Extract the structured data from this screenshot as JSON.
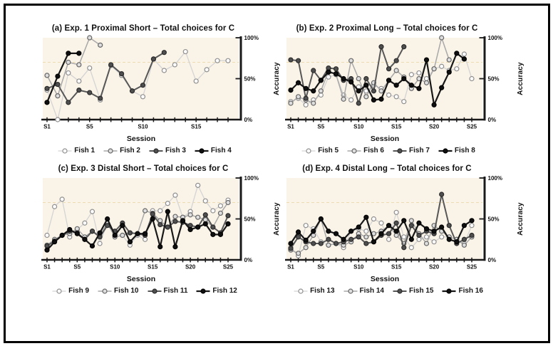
{
  "axis": {
    "color": "#1a1a1a",
    "bg": "#faf3e8",
    "ref_color": "#eddcb2",
    "ref_value": 70,
    "y_ticks": [
      {
        "label": "0%",
        "value": 0
      },
      {
        "label": "50%",
        "value": 50
      },
      {
        "label": "100%",
        "value": 100
      }
    ]
  },
  "palette": {
    "light": {
      "line": "#d4d4d4",
      "stroke": "#8f8f8f",
      "fill": "#ffffff",
      "width": 1.3
    },
    "medium": {
      "line": "#a8a8a8",
      "stroke": "#666666",
      "fill": "#dedede",
      "width": 1.5
    },
    "dark": {
      "line": "#575757",
      "stroke": "#2b2b2b",
      "fill": "#4f4f4f",
      "width": 2.0
    },
    "black": {
      "line": "#181818",
      "stroke": "#000000",
      "fill": "#101010",
      "width": 2.2
    }
  },
  "chart_data": [
    {
      "type": "line",
      "id": "a",
      "title": "(a) Exp. 1 Proximal Short – Total choices for C",
      "xlabel": "Session",
      "ylabel": "Accuracy",
      "ylim": [
        0,
        100
      ],
      "n_sessions": 18,
      "x_tick_labels": [
        {
          "label": "S1",
          "session": 1
        },
        {
          "label": "S5",
          "session": 5
        },
        {
          "label": "S10",
          "session": 10
        },
        {
          "label": "S15",
          "session": 15
        }
      ],
      "series": [
        {
          "name": "Fish 1",
          "style": "light",
          "values": [
            36,
            0,
            57,
            47,
            63,
            24,
            66,
            54,
            35,
            28,
            74,
            60,
            67,
            83,
            47,
            61,
            72,
            72
          ]
        },
        {
          "name": "Fish 2",
          "style": "medium",
          "values": [
            54,
            29,
            70,
            67,
            100,
            91
          ]
        },
        {
          "name": "Fish 3",
          "style": "dark",
          "values": [
            38,
            43,
            21,
            36,
            33,
            26,
            67,
            56,
            35,
            42,
            74,
            82
          ]
        },
        {
          "name": "Fish 4",
          "style": "black",
          "values": [
            21,
            53,
            81,
            81
          ]
        }
      ]
    },
    {
      "type": "line",
      "id": "b",
      "title": "(b) Exp. 2 Proximal Long – Total choices for C",
      "xlabel": "Session",
      "ylabel": "Accuracy",
      "ylim": [
        0,
        100
      ],
      "n_sessions": 25,
      "x_tick_labels": [
        {
          "label": "S1",
          "session": 1
        },
        {
          "label": "S5",
          "session": 5
        },
        {
          "label": "S10",
          "session": 10
        },
        {
          "label": "S15",
          "session": 15
        },
        {
          "label": "S20",
          "session": 20
        },
        {
          "label": "S25",
          "session": 25
        }
      ],
      "series": [
        {
          "name": "Fish 5",
          "style": "light",
          "values": [
            22,
            26,
            18,
            24,
            30,
            52,
            55,
            30,
            24,
            40,
            35,
            42,
            38,
            30,
            28,
            22,
            55,
            57,
            50,
            62,
            65,
            60,
            62,
            80,
            50
          ]
        },
        {
          "name": "Fish 6",
          "style": "medium",
          "values": [
            20,
            28,
            24,
            20,
            35,
            60,
            55,
            25,
            72,
            50,
            28,
            45,
            35,
            48,
            60,
            52,
            38,
            50,
            45,
            62,
            100,
            73
          ]
        },
        {
          "name": "Fish 7",
          "style": "dark",
          "values": [
            73,
            72,
            26,
            60,
            48,
            63,
            62,
            48,
            50,
            20,
            50,
            35,
            89,
            62,
            72,
            89
          ]
        },
        {
          "name": "Fish 8",
          "style": "black",
          "values": [
            36,
            45,
            38,
            35,
            48,
            58,
            56,
            50,
            46,
            35,
            42,
            24,
            25,
            48,
            42,
            50,
            42,
            38,
            73,
            18,
            39,
            58,
            81,
            74
          ]
        }
      ]
    },
    {
      "type": "line",
      "id": "c",
      "title": "(c) Exp. 3 Distal Short – Total choices for C",
      "xlabel": "Session",
      "ylabel": "Accuracy",
      "ylim": [
        0,
        100
      ],
      "n_sessions": 25,
      "x_tick_labels": [
        {
          "label": "S1",
          "session": 1
        },
        {
          "label": "S5",
          "session": 5
        },
        {
          "label": "S10",
          "session": 10
        },
        {
          "label": "S15",
          "session": 15
        },
        {
          "label": "S20",
          "session": 20
        },
        {
          "label": "S25",
          "session": 25
        }
      ],
      "series": [
        {
          "name": "Fish 9",
          "style": "light",
          "values": [
            30,
            65,
            74,
            28,
            37,
            45,
            59,
            20,
            45,
            32,
            30,
            18,
            30,
            25,
            60,
            60,
            69,
            79,
            52,
            59,
            91,
            72,
            60,
            66,
            73
          ]
        },
        {
          "name": "Fish 10",
          "style": "medium",
          "values": [
            18,
            25,
            30,
            32,
            38,
            28,
            35,
            30,
            45,
            28,
            30,
            33,
            32,
            60,
            57,
            48,
            40,
            53,
            52,
            55,
            52,
            49,
            40,
            57,
            70
          ]
        },
        {
          "name": "Fish 11",
          "style": "dark",
          "values": [
            17,
            23,
            30,
            35,
            33,
            25,
            35,
            28,
            42,
            35,
            45,
            33,
            32,
            30,
            56,
            43,
            40,
            47,
            46,
            42,
            40,
            55,
            40,
            33,
            54
          ]
        },
        {
          "name": "Fish 12",
          "style": "black",
          "values": [
            12,
            22,
            30,
            37,
            32,
            25,
            17,
            33,
            50,
            30,
            42,
            22,
            32,
            32,
            50,
            16,
            59,
            16,
            48,
            37,
            40,
            44,
            31,
            31,
            44
          ]
        }
      ]
    },
    {
      "type": "line",
      "id": "d",
      "title": "(d) Exp. 4 Distal Long – Total choices for C",
      "xlabel": "Session",
      "ylabel": "Accuracy",
      "ylim": [
        0,
        100
      ],
      "n_sessions": 25,
      "x_tick_labels": [
        {
          "label": "S1",
          "session": 1
        },
        {
          "label": "S5",
          "session": 5
        },
        {
          "label": "S10",
          "session": 10
        },
        {
          "label": "S15",
          "session": 15
        },
        {
          "label": "S20",
          "session": 20
        },
        {
          "label": "S25",
          "session": 25
        }
      ],
      "series": [
        {
          "name": "Fish 13",
          "style": "light",
          "values": [
            15,
            5,
            42,
            38,
            22,
            18,
            20,
            15,
            35,
            38,
            35,
            50,
            45,
            25,
            58,
            28,
            15,
            25,
            28,
            22,
            28,
            28,
            25,
            20,
            42
          ]
        },
        {
          "name": "Fish 14",
          "style": "medium",
          "values": [
            12,
            8,
            15,
            30,
            50,
            18,
            20,
            18,
            22,
            32,
            28,
            32,
            35,
            42,
            30,
            20,
            48,
            32,
            20,
            42,
            35,
            28,
            25,
            18,
            28
          ]
        },
        {
          "name": "Fish 15",
          "style": "dark",
          "values": [
            14,
            28,
            22,
            20,
            20,
            25,
            20,
            22,
            25,
            28,
            20,
            22,
            30,
            32,
            45,
            15,
            42,
            30,
            35,
            32,
            80,
            42,
            20,
            25,
            30
          ]
        },
        {
          "name": "Fish 16",
          "style": "black",
          "values": [
            20,
            34,
            24,
            35,
            50,
            35,
            32,
            25,
            35,
            40,
            52,
            22,
            32,
            42,
            35,
            48,
            25,
            45,
            38,
            35,
            40,
            25,
            22,
            42,
            48
          ]
        }
      ]
    }
  ]
}
